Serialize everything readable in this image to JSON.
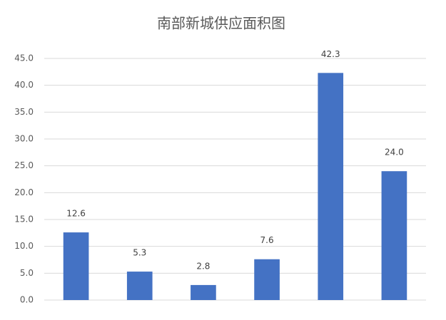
{
  "chart_data": {
    "type": "bar",
    "title": "南部新城供应面积图",
    "categories": [
      null,
      null,
      null,
      null,
      null,
      null
    ],
    "values": [
      12.6,
      5.3,
      2.8,
      7.6,
      42.3,
      24.0
    ],
    "value_labels": [
      "12.6",
      "5.3",
      "2.8",
      "7.6",
      "42.3",
      "24.0"
    ],
    "color": "#4472c4",
    "ylim": [
      0,
      45
    ],
    "yticks": [
      {
        "value": 0,
        "label": "0.0"
      },
      {
        "value": 5,
        "label": "5.0"
      },
      {
        "value": 10,
        "label": "10.0"
      },
      {
        "value": 15,
        "label": "15.0"
      },
      {
        "value": 20,
        "label": "20.0"
      },
      {
        "value": 25,
        "label": "25.0"
      },
      {
        "value": 30,
        "label": "30.0"
      },
      {
        "value": 35,
        "label": "35.0"
      },
      {
        "value": 40,
        "label": "40.0"
      },
      {
        "value": 45,
        "label": "45.0"
      }
    ],
    "grid": true
  }
}
